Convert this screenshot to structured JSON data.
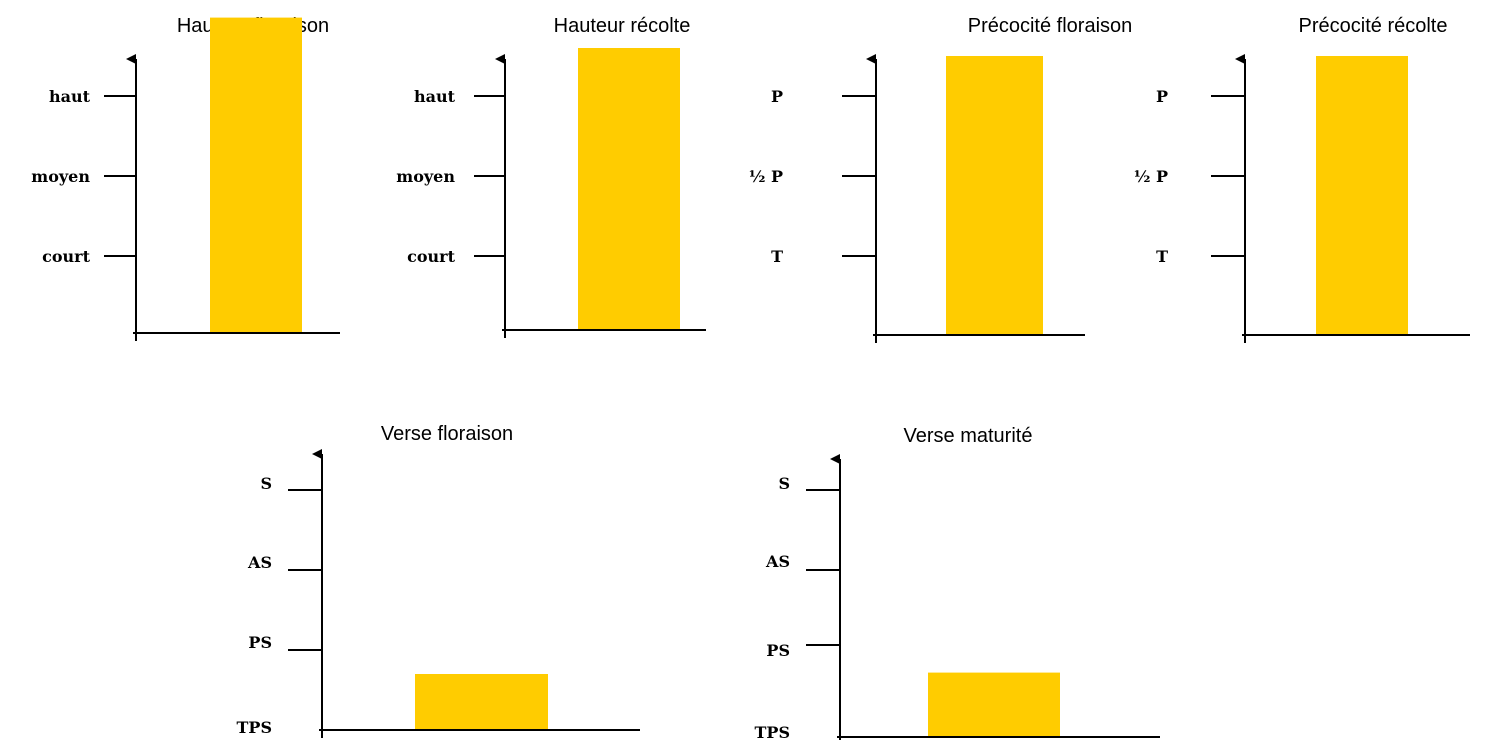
{
  "colors": {
    "bar": "#FFCC00",
    "axis": "#000000",
    "background": "#FFFFFF"
  },
  "chart_data": [
    {
      "type": "bar",
      "title": "Hauteur floraison",
      "tick_labels": [
        "court",
        "moyen",
        "haut"
      ],
      "value": 2.98
    },
    {
      "type": "bar",
      "title": "Hauteur récolte",
      "tick_labels": [
        "court",
        "moyen",
        "haut"
      ],
      "value": 2.6
    },
    {
      "type": "bar",
      "title": "Précocité floraison",
      "tick_labels": [
        "T",
        "½ P",
        "P"
      ],
      "value": 2.5
    },
    {
      "type": "bar",
      "title": "Précocité récolte",
      "tick_labels": [
        "T",
        "½ P",
        "P"
      ],
      "value": 2.5
    },
    {
      "type": "bar",
      "title": "Verse floraison",
      "tick_labels": [
        "TPS",
        "PS",
        "AS",
        "S"
      ],
      "value": 0.7
    },
    {
      "type": "bar",
      "title": "Verse maturité",
      "tick_labels": [
        "TPS",
        "PS",
        "AS",
        "S"
      ],
      "value": 0.7
    }
  ]
}
